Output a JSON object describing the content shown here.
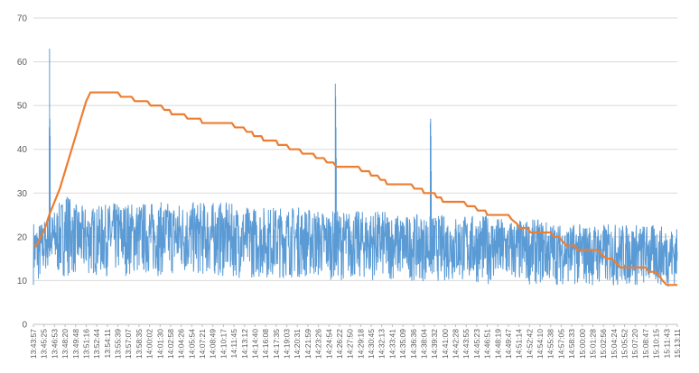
{
  "chart_data": {
    "type": "line",
    "title": "",
    "xlabel": "",
    "ylabel": "",
    "ylim": [
      0,
      70
    ],
    "yticks": [
      0,
      10,
      20,
      30,
      40,
      50,
      60,
      70
    ],
    "grid": "horizontal",
    "legend": "none",
    "x_categories": [
      "13:43:57",
      "13:45:25",
      "13:46:53",
      "13:48:20",
      "13:49:48",
      "13:51:16",
      "13:52:44",
      "13:54:11",
      "13:55:39",
      "13:57:07",
      "13:58:35",
      "14:00:02",
      "14:01:30",
      "14:02:58",
      "14:04:26",
      "14:05:54",
      "14:07:21",
      "14:08:49",
      "14:10:17",
      "14:11:45",
      "14:13:12",
      "14:14:40",
      "14:16:08",
      "14:17:35",
      "14:19:03",
      "14:20:31",
      "14:21:59",
      "14:23:26",
      "14:24:54",
      "14:26:22",
      "14:27:50",
      "14:29:18",
      "14:30:45",
      "14:32:13",
      "14:33:41",
      "14:35:09",
      "14:36:36",
      "14:38:04",
      "14:39:32",
      "14:41:00",
      "14:42:28",
      "14:43:55",
      "14:45:23",
      "14:46:51",
      "14:48:19",
      "14:49:47",
      "14:51:14",
      "14:52:42",
      "14:54:10",
      "14:55:38",
      "14:57:05",
      "14:58:33",
      "15:00:00",
      "15:01:28",
      "15:02:56",
      "15:04:24",
      "15:05:52",
      "15:07:20",
      "15:08:47",
      "15:10:15",
      "15:11:43",
      "15:13:11"
    ],
    "series": [
      {
        "color": "#5b9bd5",
        "style": "noisy-band",
        "low_profile": [
          [
            0,
            9
          ],
          [
            0.3,
            9.5
          ],
          [
            0.6,
            9
          ],
          [
            1.0,
            11
          ],
          [
            1.5,
            13
          ],
          [
            1.8,
            12
          ],
          [
            2.3,
            10.5
          ],
          [
            3,
            11
          ],
          [
            5,
            11
          ],
          [
            10,
            11
          ],
          [
            15,
            11
          ],
          [
            20,
            10.5
          ],
          [
            25,
            10.5
          ],
          [
            30,
            10
          ],
          [
            35,
            10
          ],
          [
            40,
            9.5
          ],
          [
            45,
            9
          ],
          [
            50,
            9
          ],
          [
            55,
            8.5
          ],
          [
            61,
            8.5
          ]
        ],
        "high_profile": [
          [
            0,
            24
          ],
          [
            0.3,
            23
          ],
          [
            1.0,
            24
          ],
          [
            1.6,
            25
          ],
          [
            2.2,
            27
          ],
          [
            2.8,
            29
          ],
          [
            3.2,
            31
          ],
          [
            3.6,
            28
          ],
          [
            4.5,
            27
          ],
          [
            6,
            27
          ],
          [
            8,
            28
          ],
          [
            10,
            28
          ],
          [
            12,
            28
          ],
          [
            15,
            28
          ],
          [
            18,
            28
          ],
          [
            20,
            27
          ],
          [
            23,
            27
          ],
          [
            25,
            27
          ],
          [
            28,
            26
          ],
          [
            30,
            26
          ],
          [
            33,
            26
          ],
          [
            35,
            25
          ],
          [
            38,
            25
          ],
          [
            40,
            25
          ],
          [
            43,
            25
          ],
          [
            45,
            24
          ],
          [
            48,
            24
          ],
          [
            50,
            23
          ],
          [
            52,
            23
          ],
          [
            55,
            23
          ],
          [
            58,
            23
          ],
          [
            61,
            22
          ]
        ],
        "spikes": [
          {
            "x": 1.5,
            "values": [
              45,
              63,
              47,
              43
            ]
          },
          {
            "x": 28.6,
            "values": [
              55,
              52,
              45,
              38
            ]
          },
          {
            "x": 37.6,
            "values": [
              46,
              47,
              43,
              35
            ]
          }
        ]
      },
      {
        "color": "#ed7d31",
        "style": "step",
        "points": [
          [
            0,
            18
          ],
          [
            0.3,
            18
          ],
          [
            0.7,
            20
          ],
          [
            1.1,
            22
          ],
          [
            1.5,
            25
          ],
          [
            2.0,
            28
          ],
          [
            2.5,
            31
          ],
          [
            3.0,
            35
          ],
          [
            3.5,
            39
          ],
          [
            4.0,
            43
          ],
          [
            4.5,
            47
          ],
          [
            5.0,
            51
          ],
          [
            5.4,
            53
          ],
          [
            8,
            53
          ],
          [
            8.3,
            52
          ],
          [
            9.3,
            52
          ],
          [
            9.6,
            51
          ],
          [
            10.8,
            51
          ],
          [
            11.1,
            50
          ],
          [
            12.1,
            50
          ],
          [
            12.4,
            49
          ],
          [
            12.9,
            49
          ],
          [
            13.1,
            48
          ],
          [
            14.3,
            48
          ],
          [
            14.6,
            47
          ],
          [
            15.8,
            47
          ],
          [
            16.0,
            46
          ],
          [
            18.8,
            46
          ],
          [
            19.1,
            45
          ],
          [
            19.9,
            45
          ],
          [
            20.2,
            44
          ],
          [
            20.7,
            44
          ],
          [
            20.9,
            43
          ],
          [
            21.6,
            43
          ],
          [
            21.8,
            42
          ],
          [
            23.0,
            42
          ],
          [
            23.2,
            41
          ],
          [
            24.0,
            41
          ],
          [
            24.3,
            40
          ],
          [
            25.2,
            40
          ],
          [
            25.5,
            39
          ],
          [
            26.5,
            39
          ],
          [
            26.8,
            38
          ],
          [
            27.5,
            38
          ],
          [
            27.8,
            37
          ],
          [
            28.4,
            37
          ],
          [
            28.7,
            36
          ],
          [
            30.8,
            36
          ],
          [
            31.1,
            35
          ],
          [
            31.8,
            35
          ],
          [
            32.0,
            34
          ],
          [
            32.6,
            34
          ],
          [
            32.9,
            33
          ],
          [
            33.3,
            33
          ],
          [
            33.5,
            32
          ],
          [
            35.8,
            32
          ],
          [
            36.1,
            31
          ],
          [
            36.8,
            31
          ],
          [
            37.0,
            30
          ],
          [
            38.0,
            30
          ],
          [
            38.2,
            29
          ],
          [
            38.6,
            29
          ],
          [
            38.8,
            28
          ],
          [
            40.8,
            28
          ],
          [
            41.1,
            27
          ],
          [
            41.8,
            27
          ],
          [
            42.1,
            26
          ],
          [
            42.8,
            26
          ],
          [
            43.0,
            25
          ],
          [
            45.0,
            25
          ],
          [
            45.3,
            24
          ],
          [
            45.8,
            23
          ],
          [
            46.1,
            22
          ],
          [
            46.8,
            22
          ],
          [
            47.1,
            21
          ],
          [
            49.0,
            21
          ],
          [
            49.3,
            20
          ],
          [
            49.8,
            20
          ],
          [
            50.1,
            19
          ],
          [
            50.5,
            18
          ],
          [
            51.3,
            18
          ],
          [
            51.5,
            17
          ],
          [
            53.5,
            17
          ],
          [
            53.8,
            16
          ],
          [
            54.3,
            15
          ],
          [
            54.8,
            15
          ],
          [
            55.2,
            14
          ],
          [
            55.6,
            13
          ],
          [
            58.0,
            13
          ],
          [
            58.3,
            12
          ],
          [
            59.0,
            12
          ],
          [
            59.3,
            11
          ],
          [
            59.6,
            10
          ],
          [
            60.0,
            9
          ],
          [
            61,
            9
          ]
        ]
      }
    ]
  }
}
